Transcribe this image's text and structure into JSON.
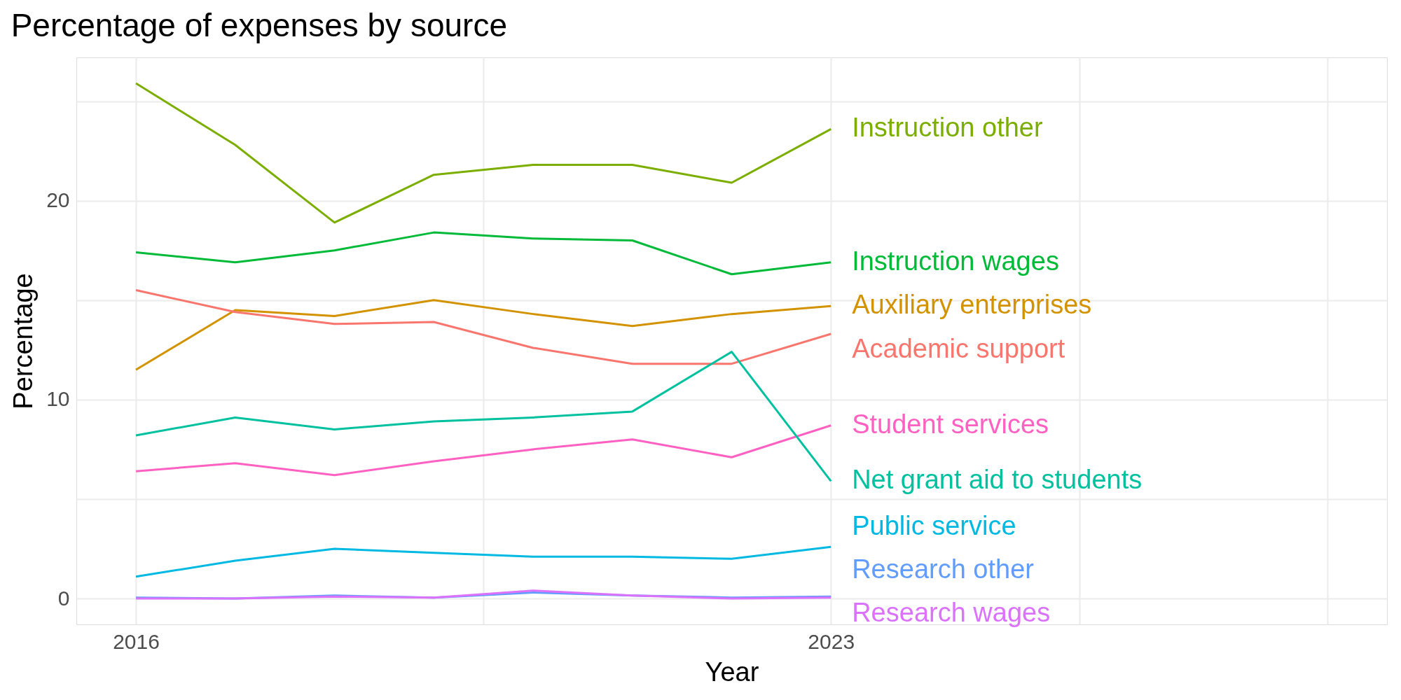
{
  "chart_data": {
    "type": "line",
    "title": "Percentage of expenses by source",
    "xlabel": "Year",
    "ylabel": "Percentage",
    "x": [
      2016,
      2017,
      2018,
      2019,
      2020,
      2021,
      2022,
      2023
    ],
    "series": [
      {
        "name": "Instruction other",
        "color": "#7cae00",
        "values": [
          25.9,
          22.8,
          18.9,
          21.3,
          21.8,
          21.8,
          20.9,
          23.6
        ]
      },
      {
        "name": "Instruction wages",
        "color": "#00ba38",
        "values": [
          17.4,
          16.9,
          17.5,
          18.4,
          18.1,
          18.0,
          16.3,
          16.9
        ]
      },
      {
        "name": "Auxiliary enterprises",
        "color": "#d39200",
        "values": [
          11.5,
          14.5,
          14.2,
          15.0,
          14.3,
          13.7,
          14.3,
          14.7
        ]
      },
      {
        "name": "Academic support",
        "color": "#f8766d",
        "values": [
          15.5,
          14.4,
          13.8,
          13.9,
          12.6,
          11.8,
          11.8,
          13.3
        ]
      },
      {
        "name": "Student services",
        "color": "#ff61c3",
        "values": [
          6.4,
          6.8,
          6.2,
          6.9,
          7.5,
          8.0,
          7.1,
          8.7
        ]
      },
      {
        "name": "Net grant aid to students",
        "color": "#00c19f",
        "values": [
          8.2,
          9.1,
          8.5,
          8.9,
          9.1,
          9.4,
          12.4,
          5.9
        ]
      },
      {
        "name": "Public service",
        "color": "#00b9e3",
        "values": [
          1.1,
          1.9,
          2.5,
          2.3,
          2.1,
          2.1,
          2.0,
          2.6
        ]
      },
      {
        "name": "Research other",
        "color": "#619cff",
        "values": [
          0.05,
          0.0,
          0.15,
          0.05,
          0.3,
          0.15,
          0.05,
          0.1
        ]
      },
      {
        "name": "Research wages",
        "color": "#db72fb",
        "values": [
          0.0,
          0.0,
          0.1,
          0.05,
          0.4,
          0.15,
          0.0,
          0.05
        ]
      }
    ],
    "xlim": [
      2015.4,
      2028.6
    ],
    "xticks": [
      2016,
      {
        "value": 2019.5,
        "label": null
      },
      2023,
      {
        "value": 2025.5,
        "label": null
      },
      {
        "value": 2028,
        "label": null
      }
    ],
    "ylim": [
      -1.3,
      27.2
    ],
    "yticks": [
      0,
      {
        "value": 5,
        "label": null
      },
      10,
      {
        "value": 15,
        "label": null
      },
      20,
      {
        "value": 25,
        "label": null
      }
    ],
    "grid": true,
    "legend": false,
    "line_style": "solid",
    "marker": "none"
  }
}
